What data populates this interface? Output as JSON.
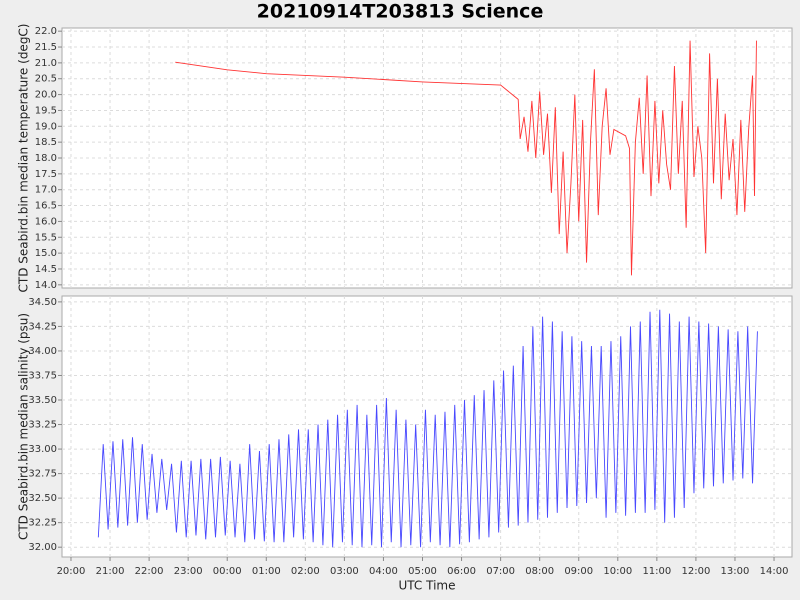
{
  "title": "20210914T203813 Science",
  "chart_data": [
    {
      "type": "line",
      "ylabel": "CTD Seabird.bin median temperature (degC)",
      "ylim": [
        13.9,
        22.1
      ],
      "yticks": [
        {
          "value": 14,
          "label": "14.0"
        },
        {
          "value": 14.5,
          "label": "14.5"
        },
        {
          "value": 15,
          "label": "15.0"
        },
        {
          "value": 15.5,
          "label": "15.5"
        },
        {
          "value": 16,
          "label": "16.0"
        },
        {
          "value": 16.5,
          "label": "16.5"
        },
        {
          "value": 17,
          "label": "17.0"
        },
        {
          "value": 17.5,
          "label": "17.5"
        },
        {
          "value": 18,
          "label": "18.0"
        },
        {
          "value": 18.5,
          "label": "18.5"
        },
        {
          "value": 19,
          "label": "19.0"
        },
        {
          "value": 19.5,
          "label": "19.5"
        },
        {
          "value": 20,
          "label": "20.0"
        },
        {
          "value": 20.5,
          "label": "20.5"
        },
        {
          "value": 21,
          "label": "21.0"
        },
        {
          "value": 21.5,
          "label": "21.5"
        },
        {
          "value": 22,
          "label": "22.0"
        }
      ],
      "grid": true,
      "x": [
        22.67,
        24,
        25,
        27,
        29,
        31,
        31.3,
        31.45,
        31.5,
        31.6,
        31.7,
        31.8,
        31.9,
        32.0,
        32.1,
        32.2,
        32.3,
        32.4,
        32.5,
        32.6,
        32.7,
        32.8,
        32.9,
        33.0,
        33.1,
        33.2,
        33.3,
        33.4,
        33.5,
        33.6,
        33.7,
        33.8,
        33.9,
        34.2,
        34.3,
        34.35,
        34.45,
        34.55,
        34.65,
        34.75,
        34.85,
        34.95,
        35.05,
        35.15,
        35.25,
        35.35,
        35.45,
        35.55,
        35.65,
        35.75,
        35.85,
        35.95,
        36.05,
        36.15,
        36.25,
        36.35,
        36.45,
        36.55,
        36.65,
        36.75,
        36.85,
        36.95,
        37.05,
        37.15,
        37.25,
        37.35,
        37.45,
        37.5,
        37.55
      ],
      "series": [
        {
          "color": "#ff3333",
          "values": [
            21.02,
            20.78,
            20.66,
            20.55,
            20.4,
            20.3,
            20.0,
            19.85,
            18.6,
            19.3,
            18.2,
            19.8,
            18.0,
            20.1,
            18.1,
            19.4,
            16.9,
            19.6,
            15.6,
            18.2,
            15.0,
            17.2,
            20.0,
            16.0,
            19.2,
            14.7,
            18.5,
            20.8,
            16.2,
            19.0,
            20.2,
            18.1,
            18.9,
            18.7,
            18.3,
            14.3,
            18.5,
            19.9,
            17.5,
            20.6,
            16.8,
            19.8,
            17.2,
            19.5,
            17.8,
            17.0,
            20.9,
            17.5,
            19.8,
            15.8,
            21.7,
            17.4,
            19.0,
            18.0,
            15.0,
            21.3,
            17.2,
            20.5,
            16.7,
            19.4,
            17.3,
            18.6,
            16.2,
            19.2,
            16.3,
            18.9,
            20.6,
            16.8,
            21.7
          ]
        }
      ]
    },
    {
      "type": "line",
      "ylabel": "CTD Seabird.bin median salinity (psu)",
      "xlabel": "UTC Time",
      "ylim": [
        31.9,
        34.56
      ],
      "yticks": [
        {
          "value": 32,
          "label": "32.00"
        },
        {
          "value": 32.25,
          "label": "32.25"
        },
        {
          "value": 32.5,
          "label": "32.50"
        },
        {
          "value": 32.75,
          "label": "32.75"
        },
        {
          "value": 33,
          "label": "33.00"
        },
        {
          "value": 33.25,
          "label": "33.25"
        },
        {
          "value": 33.5,
          "label": "33.50"
        },
        {
          "value": 33.75,
          "label": "33.75"
        },
        {
          "value": 34,
          "label": "34.00"
        },
        {
          "value": 34.25,
          "label": "34.25"
        },
        {
          "value": 34.5,
          "label": "34.50"
        }
      ],
      "xlim": [
        19.77,
        38.46
      ],
      "xticks": [
        {
          "value": 20,
          "label": "20:00"
        },
        {
          "value": 21,
          "label": "21:00"
        },
        {
          "value": 22,
          "label": "22:00"
        },
        {
          "value": 23,
          "label": "23:00"
        },
        {
          "value": 24,
          "label": "00:00"
        },
        {
          "value": 25,
          "label": "01:00"
        },
        {
          "value": 26,
          "label": "02:00"
        },
        {
          "value": 27,
          "label": "03:00"
        },
        {
          "value": 28,
          "label": "04:00"
        },
        {
          "value": 29,
          "label": "05:00"
        },
        {
          "value": 30,
          "label": "06:00"
        },
        {
          "value": 31,
          "label": "07:00"
        },
        {
          "value": 32,
          "label": "08:00"
        },
        {
          "value": 33,
          "label": "09:00"
        },
        {
          "value": 34,
          "label": "10:00"
        },
        {
          "value": 35,
          "label": "11:00"
        },
        {
          "value": 36,
          "label": "12:00"
        },
        {
          "value": 37,
          "label": "13:00"
        },
        {
          "value": 38,
          "label": "14:00"
        }
      ],
      "grid": true,
      "x": [
        20.7,
        20.825,
        20.95,
        21.075,
        21.2,
        21.325,
        21.45,
        21.575,
        21.7,
        21.825,
        21.95,
        22.075,
        22.2,
        22.325,
        22.45,
        22.575,
        22.7,
        22.825,
        22.95,
        23.075,
        23.2,
        23.325,
        23.45,
        23.575,
        23.7,
        23.825,
        23.95,
        24.075,
        24.2,
        24.325,
        24.45,
        24.575,
        24.7,
        24.825,
        24.95,
        25.075,
        25.2,
        25.325,
        25.45,
        25.575,
        25.7,
        25.825,
        25.95,
        26.075,
        26.2,
        26.325,
        26.45,
        26.575,
        26.7,
        26.825,
        26.95,
        27.075,
        27.2,
        27.325,
        27.45,
        27.575,
        27.7,
        27.825,
        27.95,
        28.075,
        28.2,
        28.325,
        28.45,
        28.575,
        28.7,
        28.825,
        28.95,
        29.075,
        29.2,
        29.325,
        29.45,
        29.575,
        29.7,
        29.825,
        29.95,
        30.075,
        30.2,
        30.325,
        30.45,
        30.575,
        30.7,
        30.825,
        30.95,
        31.075,
        31.2,
        31.325,
        31.45,
        31.575,
        31.7,
        31.825,
        31.95,
        32.075,
        32.2,
        32.325,
        32.45,
        32.575,
        32.7,
        32.825,
        32.95,
        33.075,
        33.2,
        33.325,
        33.45,
        33.575,
        33.7,
        33.825,
        33.95,
        34.075,
        34.2,
        34.325,
        34.45,
        34.575,
        34.7,
        34.825,
        34.95,
        35.075,
        35.2,
        35.325,
        35.45,
        35.575,
        35.7,
        35.825,
        35.95,
        36.075,
        36.2,
        36.325,
        36.45,
        36.575,
        36.7,
        36.825,
        36.95,
        37.075,
        37.2,
        37.325,
        37.45,
        37.575
      ],
      "series": [
        {
          "color": "#4848ff",
          "values": [
            32.1,
            33.05,
            32.18,
            33.08,
            32.2,
            33.1,
            32.22,
            33.12,
            32.25,
            33.05,
            32.28,
            32.95,
            32.35,
            32.9,
            32.38,
            32.85,
            32.15,
            32.88,
            32.1,
            32.88,
            32.12,
            32.9,
            32.08,
            32.9,
            32.1,
            32.92,
            32.12,
            32.88,
            32.1,
            32.85,
            32.05,
            33.05,
            32.08,
            32.98,
            32.06,
            33.05,
            32.05,
            33.1,
            32.05,
            33.15,
            32.1,
            33.2,
            32.08,
            33.2,
            32.05,
            33.25,
            32.02,
            33.3,
            32.0,
            33.35,
            32.05,
            33.4,
            32.02,
            33.45,
            32.0,
            33.35,
            32.02,
            33.45,
            32.0,
            33.52,
            32.05,
            33.4,
            32.0,
            33.3,
            32.02,
            33.25,
            32.0,
            33.4,
            32.05,
            33.35,
            32.02,
            33.38,
            32.0,
            33.45,
            32.03,
            33.5,
            32.05,
            33.55,
            32.08,
            33.6,
            32.1,
            33.7,
            32.15,
            33.8,
            32.2,
            33.85,
            32.22,
            34.05,
            32.25,
            34.25,
            32.28,
            34.35,
            32.3,
            34.3,
            32.35,
            34.2,
            32.4,
            34.15,
            32.42,
            34.1,
            32.45,
            34.05,
            32.5,
            34.05,
            32.3,
            34.1,
            32.35,
            34.15,
            32.32,
            34.25,
            32.35,
            34.3,
            32.35,
            34.4,
            32.38,
            34.42,
            32.25,
            34.38,
            32.3,
            34.3,
            32.4,
            34.35,
            32.55,
            34.3,
            32.6,
            34.28,
            32.62,
            34.25,
            32.65,
            34.22,
            32.68,
            34.2,
            32.7,
            34.25,
            32.65,
            34.2
          ]
        }
      ]
    }
  ]
}
